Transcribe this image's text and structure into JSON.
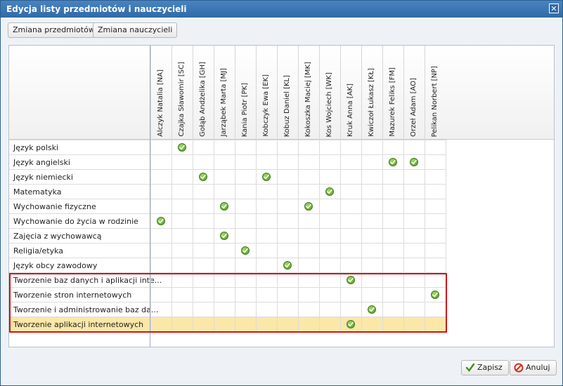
{
  "dialog": {
    "title": "Edycja listy przedmiotów i nauczycieli",
    "close_glyph": "✕"
  },
  "toolbar": {
    "change_subjects_label": "Zmiana przedmiotów",
    "change_teachers_label": "Zmiana nauczycieli"
  },
  "teachers": [
    "Alczyk Natalia [NA]",
    "Czajka Sławomir [SC]",
    "Gołąb Andżelika [GH]",
    "Jarząbek Marta [MJ]",
    "Kania Piotr [PK]",
    "Kobczyk Ewa [EK]",
    "Kobuz Daniel [KL]",
    "Kokoszka Maciej [MK]",
    "Kos Wojciech [WK]",
    "Kruk Anna [AK]",
    "Kwiczoł Łukasz [KŁ]",
    "Mazurek Feliks [FM]",
    "Orzeł Adam [AO]",
    "Pelikan Norbert [NP]"
  ],
  "subjects": [
    {
      "name": "Język polski",
      "checked": [
        1
      ]
    },
    {
      "name": "Język angielski",
      "checked": [
        11,
        12
      ]
    },
    {
      "name": "Język niemiecki",
      "checked": [
        2,
        5
      ]
    },
    {
      "name": "Matematyka",
      "checked": [
        8
      ]
    },
    {
      "name": "Wychowanie fizyczne",
      "checked": [
        3,
        7
      ]
    },
    {
      "name": "Wychowanie do życia w rodzinie",
      "checked": [
        0
      ]
    },
    {
      "name": "Zajęcia z wychowawcą",
      "checked": [
        3
      ]
    },
    {
      "name": "Religia/etyka",
      "checked": [
        4
      ]
    },
    {
      "name": "Język obcy zawodowy",
      "checked": [
        6
      ]
    },
    {
      "name": "Tworzenie baz danych i aplikacji inte...",
      "checked": [
        9
      ]
    },
    {
      "name": "Tworzenie stron internetowych",
      "checked": [
        13
      ]
    },
    {
      "name": "Tworzenie i administrowanie baz da...",
      "checked": [
        10
      ]
    },
    {
      "name": "Tworzenie aplikacji internetowych",
      "checked": [
        9
      ],
      "selected": true
    }
  ],
  "footer": {
    "save_label": "Zapisz",
    "cancel_label": "Anuluj"
  },
  "colors": {
    "titlebar": "#2f6aa8",
    "selected_row": "#fbe7a8",
    "highlight_border": "#d21414",
    "check": "#4e9a1f"
  }
}
